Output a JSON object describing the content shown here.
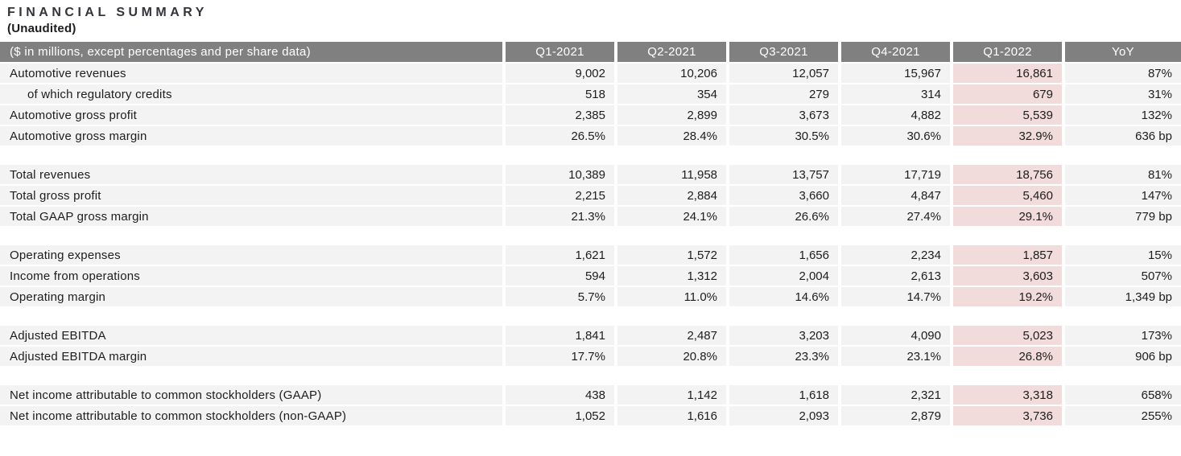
{
  "page": {
    "title": "FINANCIAL SUMMARY",
    "subtitle": "(Unaudited)"
  },
  "colors": {
    "header_bg": "#808080",
    "header_text": "#ffffff",
    "row_bg": "#f4f3f3",
    "highlight_bg": "#f1dcdb",
    "text": "#1d1d1d"
  },
  "table": {
    "header": {
      "label": "($ in millions, except percentages and per share data)",
      "columns": [
        "Q1-2021",
        "Q2-2021",
        "Q3-2021",
        "Q4-2021",
        "Q1-2022",
        "YoY"
      ]
    },
    "highlight_column": "Q1-2022",
    "groups": [
      {
        "rows": [
          {
            "label": "Automotive revenues",
            "indent": false,
            "values": [
              "9,002",
              "10,206",
              "12,057",
              "15,967",
              "16,861",
              "87%"
            ]
          },
          {
            "label": "of which regulatory credits",
            "indent": true,
            "values": [
              "518",
              "354",
              "279",
              "314",
              "679",
              "31%"
            ]
          },
          {
            "label": "Automotive gross profit",
            "indent": false,
            "values": [
              "2,385",
              "2,899",
              "3,673",
              "4,882",
              "5,539",
              "132%"
            ]
          },
          {
            "label": "Automotive gross margin",
            "indent": false,
            "values": [
              "26.5%",
              "28.4%",
              "30.5%",
              "30.6%",
              "32.9%",
              "636 bp"
            ]
          }
        ]
      },
      {
        "rows": [
          {
            "label": "Total revenues",
            "indent": false,
            "values": [
              "10,389",
              "11,958",
              "13,757",
              "17,719",
              "18,756",
              "81%"
            ]
          },
          {
            "label": "Total gross profit",
            "indent": false,
            "values": [
              "2,215",
              "2,884",
              "3,660",
              "4,847",
              "5,460",
              "147%"
            ]
          },
          {
            "label": "Total GAAP gross margin",
            "indent": false,
            "values": [
              "21.3%",
              "24.1%",
              "26.6%",
              "27.4%",
              "29.1%",
              "779 bp"
            ]
          }
        ]
      },
      {
        "rows": [
          {
            "label": "Operating expenses",
            "indent": false,
            "values": [
              "1,621",
              "1,572",
              "1,656",
              "2,234",
              "1,857",
              "15%"
            ]
          },
          {
            "label": "Income from operations",
            "indent": false,
            "values": [
              "594",
              "1,312",
              "2,004",
              "2,613",
              "3,603",
              "507%"
            ]
          },
          {
            "label": "Operating margin",
            "indent": false,
            "values": [
              "5.7%",
              "11.0%",
              "14.6%",
              "14.7%",
              "19.2%",
              "1,349 bp"
            ]
          }
        ]
      },
      {
        "rows": [
          {
            "label": "Adjusted EBITDA",
            "indent": false,
            "values": [
              "1,841",
              "2,487",
              "3,203",
              "4,090",
              "5,023",
              "173%"
            ]
          },
          {
            "label": "Adjusted EBITDA margin",
            "indent": false,
            "values": [
              "17.7%",
              "20.8%",
              "23.3%",
              "23.1%",
              "26.8%",
              "906 bp"
            ]
          }
        ]
      },
      {
        "rows": [
          {
            "label": "Net income attributable to common stockholders (GAAP)",
            "indent": false,
            "values": [
              "438",
              "1,142",
              "1,618",
              "2,321",
              "3,318",
              "658%"
            ]
          },
          {
            "label": "Net income attributable to common stockholders (non-GAAP)",
            "indent": false,
            "values": [
              "1,052",
              "1,616",
              "2,093",
              "2,879",
              "3,736",
              "255%"
            ]
          }
        ]
      }
    ]
  }
}
